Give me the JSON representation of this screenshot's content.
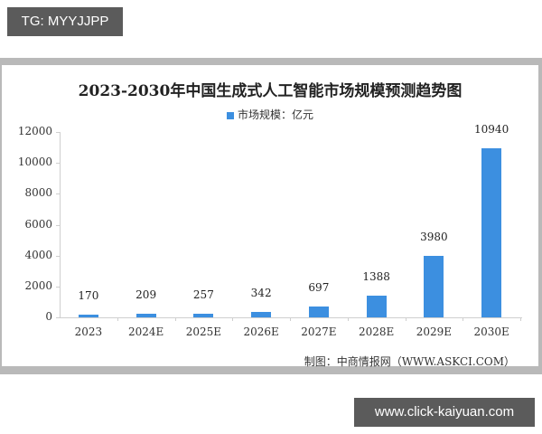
{
  "tag_badge": "TG: MYYJJPP",
  "url_badge": "www.click-kaiyuan.com",
  "chart": {
    "title": "2023-2030年中国生成式人工智能市场规模预测趋势图",
    "legend_label": "市场规模：亿元",
    "source": "制图：中商情报网（WWW.ASKCI.COM）",
    "bar_color": "#3c8fe0"
  },
  "chart_data": {
    "type": "bar",
    "title": "2023-2030年中国生成式人工智能市场规模预测趋势图",
    "categories": [
      "2023",
      "2024E",
      "2025E",
      "2026E",
      "2027E",
      "2028E",
      "2029E",
      "2030E"
    ],
    "series": [
      {
        "name": "市场规模：亿元",
        "values": [
          170,
          209,
          257,
          342,
          697,
          1388,
          3980,
          10940
        ]
      }
    ],
    "data_labels": [
      "170",
      "209",
      "257",
      "342",
      "697",
      "1388",
      "3980",
      "10940"
    ],
    "xlabel": "",
    "ylabel": "",
    "ylim": [
      0,
      12000
    ],
    "yticks": [
      "0",
      "2000",
      "4000",
      "6000",
      "8000",
      "10000",
      "12000"
    ],
    "grid": false,
    "legend_position": "top",
    "source": "制图：中商情报网（WWW.ASKCI.COM）"
  }
}
